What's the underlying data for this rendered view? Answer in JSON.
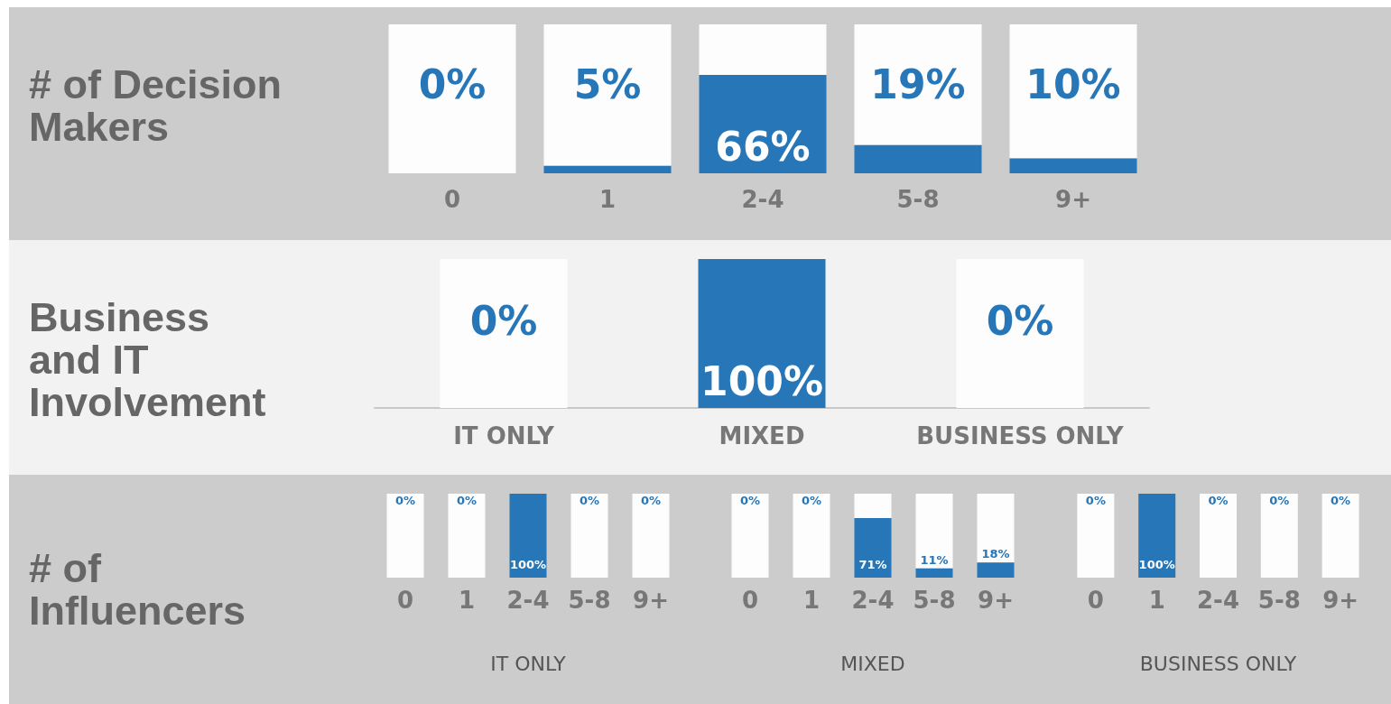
{
  "chart_data": [
    {
      "type": "bar",
      "title": "# of Decision Makers",
      "categories": [
        "0",
        "1",
        "2-4",
        "5-8",
        "9+"
      ],
      "stacked": true,
      "ylim": [
        0,
        100
      ],
      "tick_labels": "x",
      "series": [
        {
          "color": "#2777b8",
          "values": [
            0,
            5,
            66,
            19,
            10
          ],
          "value_labels": [
            "0%",
            "5%",
            "66%",
            "19%",
            "10%"
          ]
        },
        {
          "color": "#fdfdfd",
          "values": [
            100,
            95,
            34,
            81,
            90
          ]
        }
      ]
    },
    {
      "type": "bar",
      "title": "Business and IT Involvement",
      "categories": [
        "IT ONLY",
        "MIXED",
        "BUSINESS ONLY"
      ],
      "stacked": true,
      "ylim": [
        0,
        100
      ],
      "tick_labels": "x",
      "series": [
        {
          "color": "#2777b8",
          "values": [
            0,
            100,
            0
          ],
          "value_labels": [
            "0%",
            "100%",
            "0%"
          ]
        },
        {
          "color": "#fdfdfd",
          "values": [
            100,
            0,
            100
          ]
        }
      ]
    },
    {
      "type": "bar",
      "title": "# of Influencers",
      "xlabel": "IT ONLY",
      "categories": [
        "0",
        "1",
        "2-4",
        "5-8",
        "9+"
      ],
      "stacked": true,
      "ylim": [
        0,
        100
      ],
      "tick_labels": "x",
      "series": [
        {
          "color": "#2777b8",
          "values": [
            0,
            0,
            100,
            0,
            0
          ],
          "value_labels": [
            "0%",
            "0%",
            "100%",
            "0%",
            "0%"
          ]
        },
        {
          "color": "#fdfdfd",
          "values": [
            100,
            100,
            0,
            100,
            100
          ]
        }
      ]
    },
    {
      "type": "bar",
      "xlabel": "MIXED",
      "categories": [
        "0",
        "1",
        "2-4",
        "5-8",
        "9+"
      ],
      "stacked": true,
      "ylim": [
        0,
        100
      ],
      "tick_labels": "x",
      "series": [
        {
          "color": "#2777b8",
          "values": [
            0,
            0,
            71,
            11,
            18
          ],
          "value_labels": [
            "0%",
            "0%",
            "71%",
            "11%",
            "18%"
          ]
        },
        {
          "color": "#fdfdfd",
          "values": [
            100,
            100,
            29,
            89,
            82
          ]
        }
      ]
    },
    {
      "type": "bar",
      "xlabel": "BUSINESS ONLY",
      "categories": [
        "0",
        "1",
        "2-4",
        "5-8",
        "9+"
      ],
      "stacked": true,
      "ylim": [
        0,
        100
      ],
      "tick_labels": "x",
      "series": [
        {
          "color": "#2777b8",
          "values": [
            0,
            100,
            0,
            0,
            0
          ],
          "value_labels": [
            "0%",
            "100%",
            "0%",
            "0%",
            "0%"
          ]
        },
        {
          "color": "#fdfdfd",
          "values": [
            100,
            0,
            100,
            100,
            100
          ]
        }
      ]
    }
  ]
}
